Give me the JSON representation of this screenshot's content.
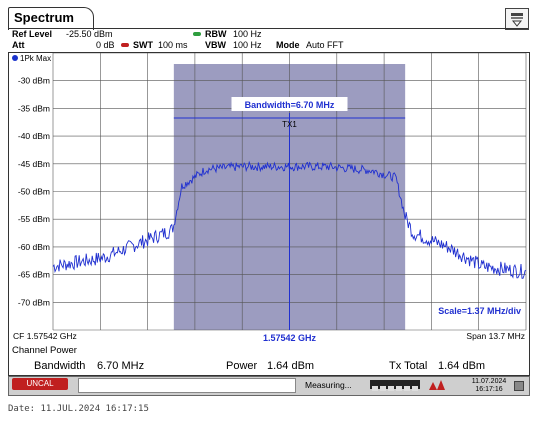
{
  "app": {
    "tab_title": "Spectrum",
    "menu_icon": "menu-icon"
  },
  "header": {
    "ref_level_label": "Ref Level",
    "ref_level_value": "-25.50 dBm",
    "att_label": "Att",
    "att_value": "0 dB",
    "swt_label": "SWT",
    "swt_value": "100 ms",
    "rbw_label": "RBW",
    "rbw_value": "100 Hz",
    "vbw_label": "VBW",
    "vbw_value": "100 Hz",
    "mode_label": "Mode",
    "mode_value": "Auto FFT",
    "rbw_indicator_color": "#2e9e3e",
    "swt_indicator_color": "#c02020"
  },
  "plot": {
    "trace_label": "1Pk Max",
    "y_labels": [
      "-30 dBm",
      "-35 dBm",
      "-40 dBm",
      "-45 dBm",
      "-50 dBm",
      "-55 dBm",
      "-60 dBm",
      "-65 dBm",
      "-70 dBm"
    ],
    "bandwidth_label": "Bandwidth=6.70 MHz",
    "marker_label": "TX1",
    "scale_label": "Scale=1.37 MHz/div",
    "center_marker_label": "1.57542 GHz",
    "cf_label": "CF 1.57542 GHz",
    "span_label": "Span 13.7 MHz",
    "channel_fill": "#9c9cc0",
    "trace_color": "#2030d0"
  },
  "chart_data": {
    "type": "line",
    "xlabel": "",
    "ylabel": "",
    "x_range_mhz": [
      1568.57,
      1582.27
    ],
    "ylim": [
      -75,
      -25
    ],
    "series": [
      {
        "x_mhz": [
          1568.57,
          1570.0,
          1571.0,
          1572.0,
          1572.07,
          1572.3,
          1573.0,
          1574.0,
          1575.42,
          1576.5,
          1577.8,
          1578.5,
          1578.77,
          1579.0,
          1580.0,
          1581.0,
          1582.27
        ],
        "values": [
          -63.5,
          -62.0,
          -59.5,
          -57.0,
          -56.0,
          -49.0,
          -46.0,
          -45.5,
          -45.5,
          -45.5,
          -46.2,
          -47.5,
          -54.5,
          -57.5,
          -60.0,
          -63.5,
          -64.5
        ]
      }
    ],
    "grid": true,
    "channel_band_mhz": [
      1572.07,
      1578.77
    ]
  },
  "channel_power": {
    "title": "Channel Power",
    "bandwidth_label": "Bandwidth",
    "bandwidth_value": "6.70 MHz",
    "power_label": "Power",
    "power_value": "1.64 dBm",
    "tx_total_label": "Tx Total",
    "tx_total_value": "1.64 dBm"
  },
  "status": {
    "uncal": "UNCAL",
    "measuring": "Measuring...",
    "date": "11.07.2024",
    "time": "16:17:16"
  },
  "footer": {
    "date_text": "Date: 11.JUL.2024  16:17:15"
  }
}
